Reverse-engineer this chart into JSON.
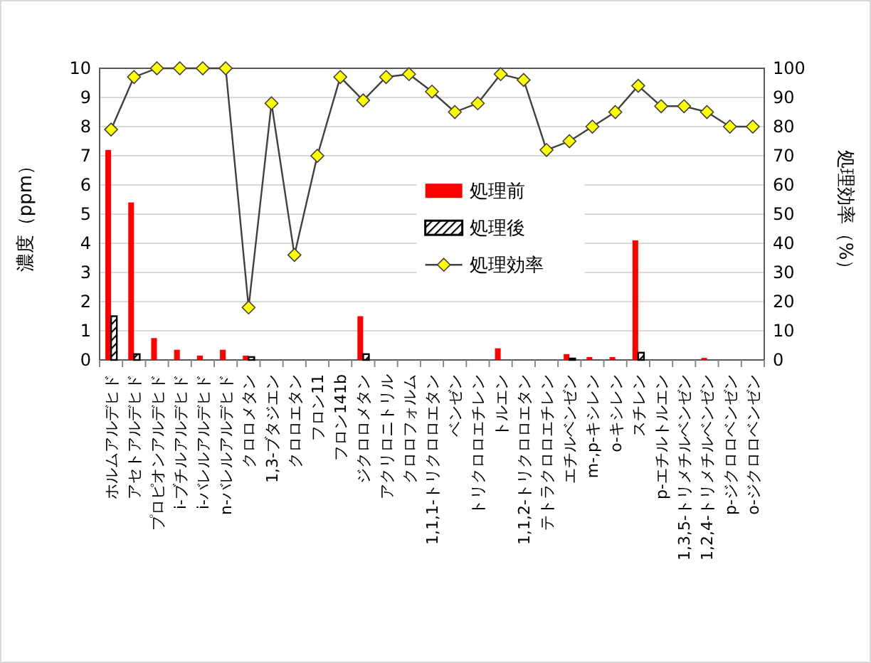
{
  "chart_data": {
    "type": "bar",
    "categories": [
      "ホルムアルデヒド",
      "アセトアルデヒド",
      "プロピオンアルデヒド",
      "i-ブチルアルデヒド",
      "i-バレルアルデヒド",
      "n-バレルアルデヒド",
      "クロロメタン",
      "1,3-ブタジエン",
      "クロロエタン",
      "フロン11",
      "フロン141b",
      "ジクロロメタン",
      "アクリロニトリル",
      "クロロフォルム",
      "1,1,1-トリクロロエタン",
      "ベンゼン",
      "トリクロロエチレン",
      "トルエン",
      "1,1,2-トリクロロエタン",
      "テトラクロロエチレン",
      "エチルベンゼン",
      "m-,p-キシレン",
      "o-キシレン",
      "スチレン",
      "p-エチルトルエン",
      "1,3,5-トリメチルベンゼン",
      "1,2,4-トリメチルベンゼン",
      "p-ジクロロベンゼン",
      "o-ジクロロベンゼン"
    ],
    "series": [
      {
        "name": "処理前",
        "color": "#ff0000",
        "values": [
          7.2,
          5.4,
          0.75,
          0.35,
          0.15,
          0.35,
          0.15,
          0,
          0,
          0,
          0,
          1.5,
          0,
          0,
          0,
          0,
          0,
          0.4,
          0,
          0,
          0.2,
          0.1,
          0.1,
          4.1,
          0,
          0,
          0.07,
          0,
          0
        ]
      },
      {
        "name": "処理後",
        "color": "#000000",
        "values": [
          1.5,
          0.2,
          0,
          0,
          0,
          0,
          0.1,
          0,
          0,
          0,
          0,
          0.2,
          0,
          0,
          0,
          0,
          0,
          0,
          0,
          0,
          0.05,
          0,
          0,
          0.25,
          0,
          0,
          0,
          0,
          0
        ]
      },
      {
        "name": "処理効率",
        "type": "line",
        "axis": "y2",
        "color": "#404040",
        "marker": "diamond",
        "values": [
          79,
          97,
          100,
          100,
          100,
          100,
          18,
          88,
          36,
          70,
          97,
          89,
          97,
          98,
          92,
          85,
          88,
          98,
          96,
          72,
          75,
          80,
          85,
          94,
          87,
          87,
          85,
          80,
          80
        ]
      }
    ],
    "ylabel": "濃度（ppm）",
    "y2label": "処理効率（%）",
    "ylim": [
      0,
      10
    ],
    "yticks": [
      0,
      1,
      2,
      3,
      4,
      5,
      6,
      7,
      8,
      9,
      10
    ],
    "y2lim": [
      0,
      100
    ],
    "y2ticks": [
      0,
      10,
      20,
      30,
      40,
      50,
      60,
      70,
      80,
      90,
      100
    ],
    "grid": "y",
    "legend": "center"
  }
}
